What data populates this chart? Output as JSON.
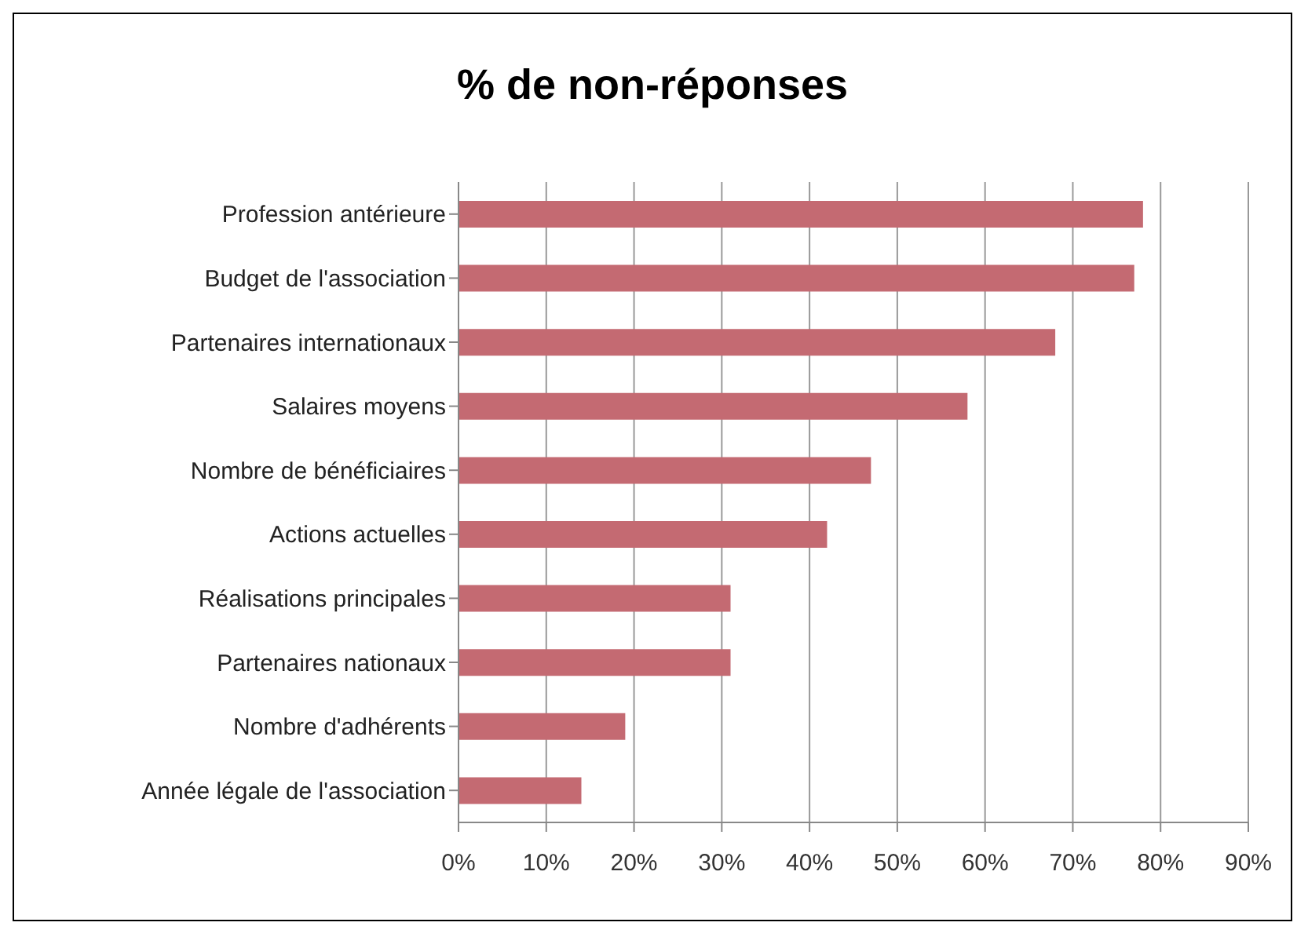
{
  "chart_data": {
    "type": "bar",
    "orientation": "horizontal",
    "title": "% de non-réponses",
    "categories": [
      "Profession antérieure",
      "Budget de l'association",
      "Partenaires internationaux",
      "Salaires moyens",
      "Nombre de bénéficiaires",
      "Actions actuelles",
      "Réalisations principales",
      "Partenaires nationaux",
      "Nombre d'adhérents",
      "Année légale de l'association"
    ],
    "values": [
      78,
      77,
      68,
      58,
      47,
      42,
      31,
      31,
      19,
      14
    ],
    "color": "#c46a72",
    "xlim": [
      0,
      90
    ],
    "xticks": [
      {
        "value": 0,
        "label": "0%"
      },
      {
        "value": 10,
        "label": "10%"
      },
      {
        "value": 20,
        "label": "20%"
      },
      {
        "value": 30,
        "label": "30%"
      },
      {
        "value": 40,
        "label": "40%"
      },
      {
        "value": 50,
        "label": "50%"
      },
      {
        "value": 60,
        "label": "60%"
      },
      {
        "value": 70,
        "label": "70%"
      },
      {
        "value": 80,
        "label": "80%"
      },
      {
        "value": 90,
        "label": "90%"
      }
    ],
    "grid": "x",
    "legend": false
  }
}
